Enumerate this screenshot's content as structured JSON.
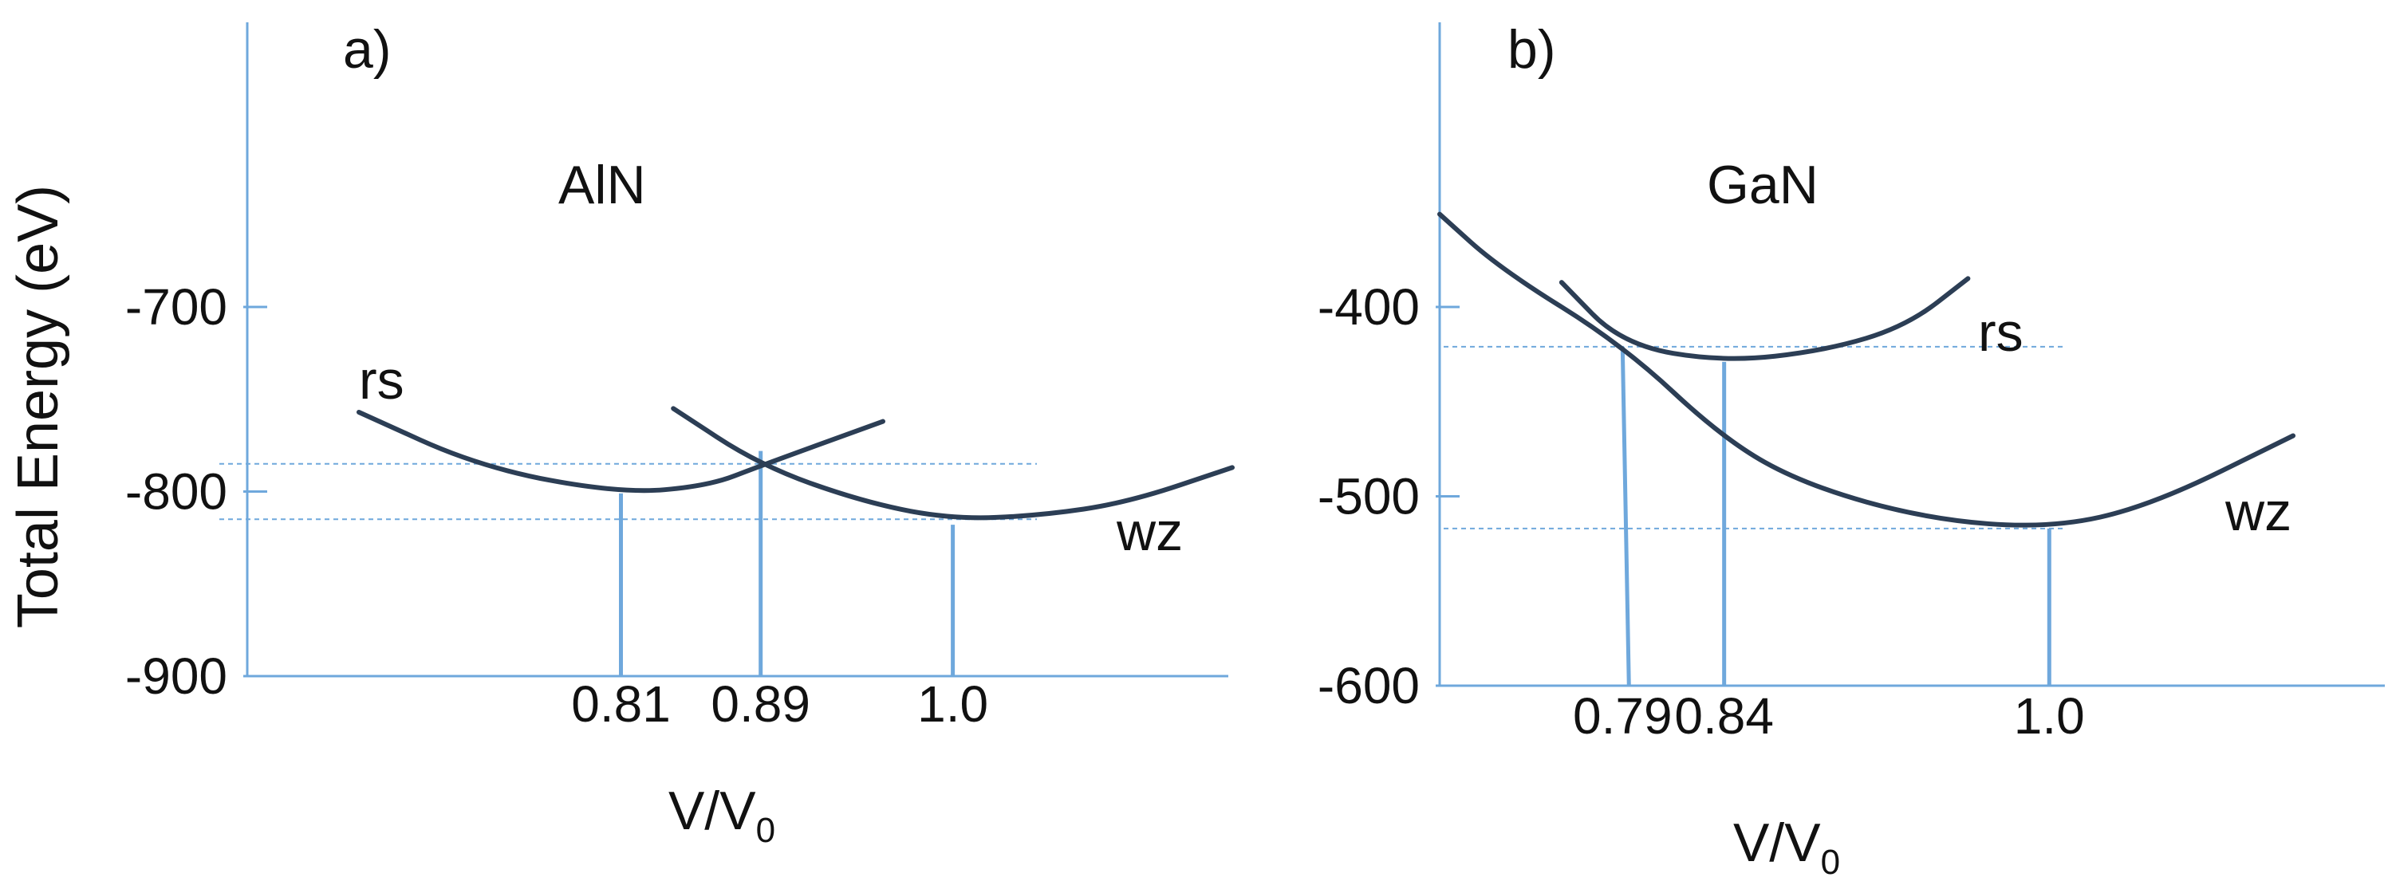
{
  "ylabel": "Total Energy (eV)",
  "chart_data": [
    {
      "type": "line",
      "panel_label": "a)",
      "material": "AlN",
      "xlabel_main": "V/V",
      "xlabel_sub": "0",
      "ylim": [
        -900,
        -600
      ],
      "y_ticks": [
        "-700",
        "-800",
        "-900"
      ],
      "x_ticks": [
        "0.81",
        "0.89",
        "1.0"
      ],
      "series": [
        {
          "name": "rs",
          "points": [
            [
              0.66,
              -757
            ],
            [
              0.73,
              -787
            ],
            [
              0.81,
              -801
            ],
            [
              0.86,
              -797
            ],
            [
              0.89,
              -786
            ],
            [
              0.96,
              -762
            ]
          ]
        },
        {
          "name": "wz",
          "points": [
            [
              0.84,
              -755
            ],
            [
              0.89,
              -786
            ],
            [
              0.95,
              -806
            ],
            [
              1.0,
              -815
            ],
            [
              1.05,
              -813
            ],
            [
              1.1,
              -806
            ],
            [
              1.16,
              -787
            ]
          ]
        }
      ],
      "guides": {
        "crossing_energy": -785,
        "wz_min_energy": -815,
        "rs_min_x": 0.81,
        "crossing_x": 0.89,
        "wz_min_x": 1.0
      }
    },
    {
      "type": "line",
      "panel_label": "b)",
      "material": "GaN",
      "xlabel_main": "V/V",
      "xlabel_sub": "0",
      "ylim": [
        -600,
        -300
      ],
      "y_ticks": [
        "-400",
        "-500",
        "-600"
      ],
      "x_ticks": [
        "0.79",
        "0.84",
        "1.0"
      ],
      "series": [
        {
          "name": "rs",
          "points": [
            [
              0.76,
              -387
            ],
            [
              0.79,
              -420
            ],
            [
              0.84,
              -429
            ],
            [
              0.89,
              -423
            ],
            [
              0.93,
              -410
            ],
            [
              0.96,
              -385
            ]
          ]
        },
        {
          "name": "wz",
          "points": [
            [
              0.7,
              -351
            ],
            [
              0.73,
              -380
            ],
            [
              0.79,
              -420
            ],
            [
              0.84,
              -470
            ],
            [
              0.88,
              -494
            ],
            [
              0.94,
              -512
            ],
            [
              1.0,
              -517
            ],
            [
              1.05,
              -505
            ],
            [
              1.12,
              -468
            ]
          ]
        }
      ],
      "guides": {
        "crossing_energy": -421,
        "wz_min_energy": -517,
        "crossing_x": 0.79,
        "rs_min_x": 0.84,
        "wz_min_x": 1.0
      }
    }
  ]
}
